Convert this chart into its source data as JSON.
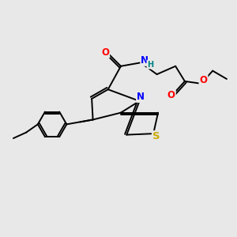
{
  "bg_color": "#e8e8e8",
  "bond_color": "#000000",
  "atom_colors": {
    "N": "#0000ff",
    "O": "#ff0000",
    "S": "#ccaa00",
    "H": "#008080",
    "C": "#000000"
  },
  "font_size": 8.5,
  "line_width": 1.4
}
